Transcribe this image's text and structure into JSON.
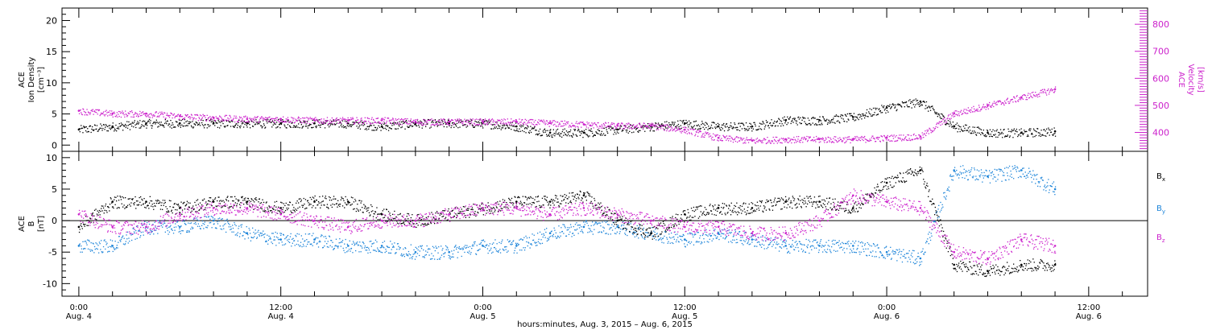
{
  "chart_data": [
    {
      "type": "scatter",
      "panel": "top",
      "ylabel": [
        "ACE",
        "Ion Density",
        "[cm⁻³]"
      ],
      "ylim": [
        -1,
        22
      ],
      "yticks": [
        0,
        5,
        10,
        15,
        20
      ],
      "y2label": [
        "ACE",
        "Velocity",
        "[km/s]"
      ],
      "y2lim": [
        330,
        860
      ],
      "y2ticks": [
        400,
        500,
        600,
        700,
        800
      ],
      "colors": {
        "density": "#000000",
        "velocity": "#cc22cc"
      },
      "series": [
        {
          "axis": "left",
          "color": "#000000",
          "x": [
            0,
            2,
            4,
            6,
            8,
            10,
            12,
            14,
            16,
            18,
            20,
            22,
            24,
            26,
            28,
            30,
            32,
            34,
            36,
            38,
            40,
            42,
            44,
            46,
            48,
            50,
            52,
            54,
            56,
            58
          ],
          "y": [
            2.5,
            3,
            3.5,
            3.5,
            3.5,
            3.5,
            3.5,
            3.5,
            3.5,
            3,
            3.5,
            3.5,
            3.5,
            3,
            2,
            2,
            2.5,
            3,
            3.5,
            3,
            3,
            4,
            4,
            4.5,
            6,
            7,
            3,
            2,
            2,
            2.2
          ]
        },
        {
          "axis": "right",
          "color": "#cc22cc",
          "x": [
            0,
            2,
            4,
            6,
            8,
            10,
            12,
            14,
            16,
            18,
            20,
            22,
            24,
            26,
            28,
            30,
            32,
            34,
            36,
            38,
            40,
            42,
            44,
            46,
            48,
            50,
            52,
            54,
            56,
            58
          ],
          "y": [
            480,
            470,
            470,
            460,
            455,
            450,
            450,
            445,
            445,
            445,
            440,
            440,
            440,
            440,
            435,
            430,
            425,
            425,
            410,
            380,
            370,
            375,
            375,
            375,
            380,
            385,
            470,
            500,
            530,
            560
          ]
        }
      ]
    },
    {
      "type": "scatter",
      "panel": "bottom",
      "ylabel": [
        "ACE",
        "B",
        "[nT]"
      ],
      "ylim": [
        -12,
        11
      ],
      "yticks": [
        -10,
        -5,
        0,
        5,
        10
      ],
      "legend": "right",
      "series": [
        {
          "name": "Bx",
          "color": "#000000",
          "x": [
            0,
            2,
            4,
            6,
            8,
            10,
            12,
            14,
            16,
            18,
            20,
            22,
            24,
            26,
            28,
            30,
            32,
            34,
            36,
            38,
            40,
            42,
            44,
            46,
            48,
            50,
            52,
            54,
            56,
            58
          ],
          "y": [
            -1,
            3,
            3,
            2,
            3,
            3,
            2,
            3,
            3,
            1,
            0,
            1,
            2,
            3,
            3,
            4,
            0,
            -2,
            1,
            2,
            2,
            3,
            3,
            2,
            6,
            8,
            -7,
            -8,
            -7,
            -7
          ]
        },
        {
          "name": "By",
          "color": "#1c84d9",
          "x": [
            0,
            2,
            4,
            6,
            8,
            10,
            12,
            14,
            16,
            18,
            20,
            22,
            24,
            26,
            28,
            30,
            32,
            34,
            36,
            38,
            40,
            42,
            44,
            46,
            48,
            50,
            52,
            54,
            56,
            58
          ],
          "y": [
            -4,
            -4,
            -1,
            -1,
            0,
            -2,
            -3,
            -3,
            -4,
            -4,
            -5,
            -5,
            -4,
            -4,
            -2,
            -1,
            -1,
            -2,
            -3,
            -2,
            -3,
            -4,
            -4,
            -4,
            -5,
            -6,
            8,
            7,
            8,
            5
          ]
        },
        {
          "name": "Bz",
          "color": "#cc22cc",
          "x": [
            0,
            2,
            4,
            6,
            8,
            10,
            12,
            14,
            16,
            18,
            20,
            22,
            24,
            26,
            28,
            30,
            32,
            34,
            36,
            38,
            40,
            42,
            44,
            46,
            48,
            50,
            52,
            54,
            56,
            58
          ],
          "y": [
            1,
            -1,
            -1,
            1,
            2,
            2,
            1,
            0,
            -1,
            0,
            0,
            1,
            2,
            2,
            1,
            2,
            1,
            0,
            -1,
            -1,
            -2,
            -2,
            0,
            4,
            3,
            2,
            -5,
            -6,
            -3,
            -4
          ]
        }
      ]
    }
  ],
  "xaxis": {
    "xlim": [
      -1,
      63.5
    ],
    "minor_step_hours": 2,
    "ticks": [
      {
        "x": 0,
        "time": "0:00",
        "day": "Aug. 4"
      },
      {
        "x": 12,
        "time": "12:00",
        "day": "Aug. 4"
      },
      {
        "x": 24,
        "time": "0:00",
        "day": "Aug. 5"
      },
      {
        "x": 36,
        "time": "12:00",
        "day": "Aug. 5"
      },
      {
        "x": 48,
        "time": "0:00",
        "day": "Aug. 6"
      },
      {
        "x": 60,
        "time": "12:00",
        "day": "Aug. 6"
      }
    ],
    "label": "hours:minutes, Aug.  3, 2015 – Aug.  6, 2015"
  },
  "legend": {
    "bx": {
      "base": "B",
      "sub": "x",
      "color": "#000000"
    },
    "by": {
      "base": "B",
      "sub": "y",
      "color": "#1c84d9"
    },
    "bz": {
      "base": "B",
      "sub": "z",
      "color": "#cc22cc"
    }
  }
}
